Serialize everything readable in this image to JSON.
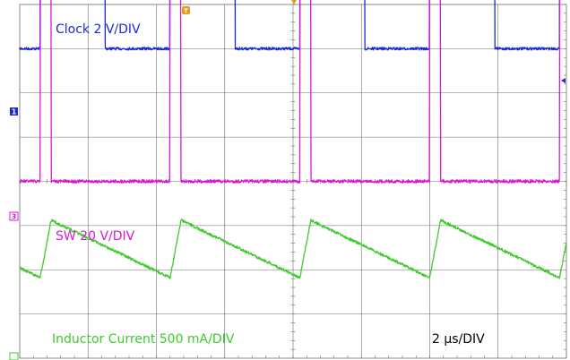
{
  "chart_data": {
    "type": "line",
    "title": "",
    "xlabel": "",
    "ylabel": "",
    "timebase": "2 μs/DIV",
    "x_divisions": 8,
    "y_divisions": 8,
    "grid": true,
    "x_range_us": [
      0,
      16
    ],
    "series": [
      {
        "name": "Clock  2 V/DIV",
        "channel_marker": "1",
        "color": "#1a2bd6",
        "baseline_div": 3.0,
        "waveform": "square",
        "period_us": 3.8,
        "phase_us": 0.6,
        "duty": 0.5,
        "low_v": 0,
        "high_v": 6.3,
        "volts_per_div": 2
      },
      {
        "name": "SW  20 V/DIV",
        "channel_marker": "3",
        "color": "#d81ad8",
        "baseline_div": 0.0,
        "waveform": "pulse",
        "period_us": 3.8,
        "phase_us": 0.6,
        "pulse_width_us": 0.32,
        "low_v": 0,
        "high_v": 95,
        "volts_per_div": 20
      },
      {
        "name": "Inductor Current  500 mA/DIV",
        "channel_marker": "",
        "color": "#3dcc2a",
        "baseline_div": -2.0,
        "waveform": "sawtooth",
        "period_us": 3.8,
        "phase_us": 0.6,
        "rise_time_us": 0.32,
        "min_ma": -90,
        "max_ma": 560,
        "ma_per_div": 500
      }
    ]
  },
  "markers": {
    "trigger": "T",
    "channel_1": "1",
    "channel_3": "3"
  }
}
